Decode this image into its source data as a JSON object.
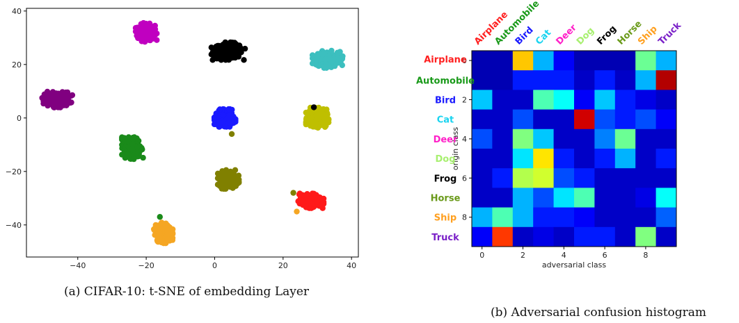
{
  "captions": {
    "a": "(a) CIFAR-10: t-SNE of embedding Layer",
    "b": "(b) Adversarial confusion histogram"
  },
  "chart_data": [
    {
      "type": "scatter",
      "title": "",
      "xlabel": "",
      "ylabel": "",
      "xlim": [
        -55,
        42
      ],
      "ylim": [
        -52,
        41
      ],
      "x_ticks": [
        -40,
        -20,
        0,
        20,
        40
      ],
      "y_ticks": [
        -40,
        -20,
        0,
        20,
        40
      ],
      "grid": false,
      "clusters": [
        {
          "color": "#c000c0",
          "cx": -20,
          "cy": 32,
          "rx": 2.8,
          "ry": 3.2
        },
        {
          "color": "#000000",
          "cx": 4,
          "cy": 25,
          "rx": 4.5,
          "ry": 3.0
        },
        {
          "color": "#3cbfbf",
          "cx": 33,
          "cy": 22,
          "rx": 4.0,
          "ry": 3.0
        },
        {
          "color": "#800080",
          "cx": -46,
          "cy": 7,
          "rx": 4.0,
          "ry": 2.8
        },
        {
          "color": "#1a1aff",
          "cx": 3,
          "cy": 0,
          "rx": 2.8,
          "ry": 3.0
        },
        {
          "color": "#bfbf00",
          "cx": 30,
          "cy": 0,
          "rx": 3.0,
          "ry": 3.5
        },
        {
          "color": "#1a8a1a",
          "cx": -24,
          "cy": -11,
          "rx": 2.8,
          "ry": 4.0
        },
        {
          "color": "#808000",
          "cx": 4,
          "cy": -23,
          "rx": 2.8,
          "ry": 3.2
        },
        {
          "color": "#ff1a1a",
          "cx": 28,
          "cy": -31,
          "rx": 3.5,
          "ry": 2.5
        },
        {
          "color": "#f5a623",
          "cx": -15,
          "cy": -43,
          "rx": 2.5,
          "ry": 3.5
        }
      ],
      "outliers": [
        {
          "x": 29,
          "y": 4,
          "color": "#000000"
        },
        {
          "x": 5,
          "y": -6,
          "color": "#808000"
        },
        {
          "x": 23,
          "y": -28,
          "color": "#808000"
        },
        {
          "x": 24,
          "y": -35,
          "color": "#f5a623"
        },
        {
          "x": -16,
          "y": -37,
          "color": "#1a8a1a"
        }
      ]
    },
    {
      "type": "heatmap",
      "title": "",
      "xlabel": "adversarial class",
      "ylabel": "origin class",
      "x_ticks": [
        0,
        2,
        4,
        6,
        8
      ],
      "y_ticks": [
        0,
        2,
        4,
        6,
        8
      ],
      "colormap": "jet",
      "vmin": 0,
      "vmax": 1,
      "classes": [
        "Airplane",
        "Automobile",
        "Bird",
        "Cat",
        "Deer",
        "Dog",
        "Frog",
        "Horse",
        "Ship",
        "Truck"
      ],
      "class_colors": [
        "#ff2020",
        "#1a9a1a",
        "#1a1aff",
        "#1ad4f0",
        "#ff20c8",
        "#a8f070",
        "#000000",
        "#6a9a1a",
        "#ffa020",
        "#7a20c8"
      ],
      "values": [
        [
          0.05,
          0.05,
          0.68,
          0.3,
          0.12,
          0.05,
          0.05,
          0.05,
          0.48,
          0.3
        ],
        [
          0.05,
          0.05,
          0.15,
          0.15,
          0.15,
          0.07,
          0.15,
          0.07,
          0.3,
          0.95
        ],
        [
          0.32,
          0.07,
          0.07,
          0.45,
          0.38,
          0.12,
          0.32,
          0.15,
          0.1,
          0.07
        ],
        [
          0.07,
          0.07,
          0.2,
          0.07,
          0.07,
          0.92,
          0.2,
          0.15,
          0.2,
          0.12
        ],
        [
          0.2,
          0.07,
          0.5,
          0.32,
          0.07,
          0.07,
          0.25,
          0.48,
          0.07,
          0.07
        ],
        [
          0.07,
          0.07,
          0.35,
          0.65,
          0.15,
          0.07,
          0.15,
          0.3,
          0.07,
          0.15
        ],
        [
          0.07,
          0.15,
          0.55,
          0.58,
          0.2,
          0.15,
          0.07,
          0.07,
          0.07,
          0.07
        ],
        [
          0.07,
          0.07,
          0.3,
          0.2,
          0.35,
          0.45,
          0.07,
          0.07,
          0.1,
          0.38
        ],
        [
          0.3,
          0.45,
          0.3,
          0.15,
          0.15,
          0.12,
          0.07,
          0.07,
          0.07,
          0.22
        ],
        [
          0.12,
          0.82,
          0.07,
          0.1,
          0.07,
          0.15,
          0.15,
          0.07,
          0.5,
          0.07
        ]
      ]
    }
  ]
}
